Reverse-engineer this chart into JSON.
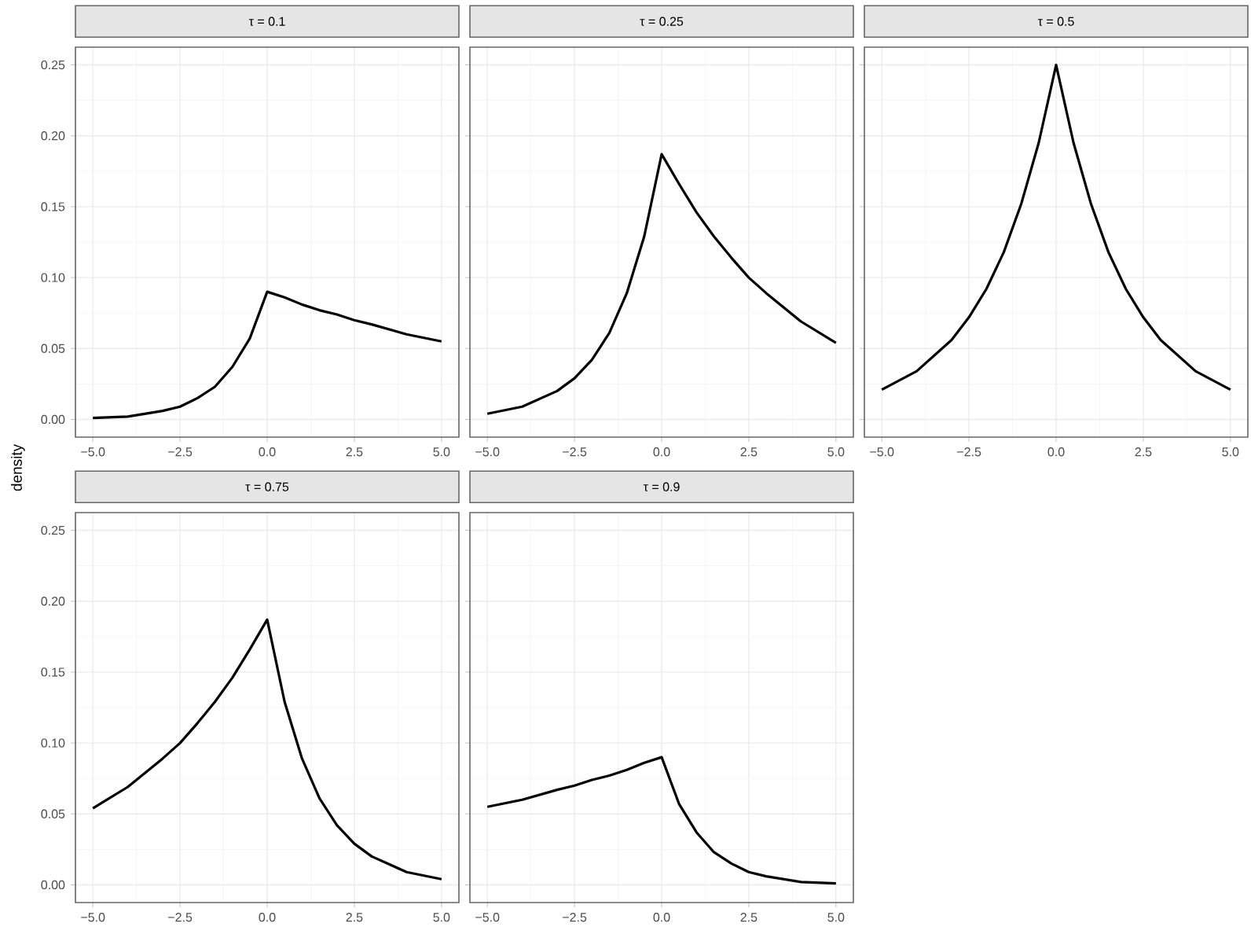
{
  "chart_data": [
    {
      "type": "line",
      "title": "τ = 0.1",
      "x": [
        -5,
        -4,
        -3,
        -2.5,
        -2,
        -1.5,
        -1,
        -0.5,
        0,
        0.5,
        1,
        1.5,
        2,
        2.5,
        3,
        4,
        5
      ],
      "series": [
        {
          "color": "#000000",
          "values": [
            0.001,
            0.002,
            0.006,
            0.009,
            0.015,
            0.023,
            0.037,
            0.057,
            0.09,
            0.086,
            0.081,
            0.077,
            0.074,
            0.07,
            0.067,
            0.06,
            0.055
          ]
        }
      ],
      "xlim": [
        -5.5,
        5.5
      ],
      "ylim": [
        -0.0125,
        0.2625
      ],
      "xticks": [
        {
          "value": -5,
          "label": "−5.0"
        },
        {
          "value": -2.5,
          "label": "−2.5"
        },
        {
          "value": 0,
          "label": "0.0"
        },
        {
          "value": 2.5,
          "label": "2.5"
        },
        {
          "value": 5,
          "label": "5.0"
        }
      ],
      "yticks": [
        {
          "value": 0,
          "label": "0.00"
        },
        {
          "value": 0.05,
          "label": "0.05"
        },
        {
          "value": 0.1,
          "label": "0.10"
        },
        {
          "value": 0.15,
          "label": "0.15"
        },
        {
          "value": 0.2,
          "label": "0.20"
        },
        {
          "value": 0.25,
          "label": "0.25"
        }
      ],
      "grid": true
    },
    {
      "type": "line",
      "title": "τ = 0.25",
      "x": [
        -5,
        -4,
        -3,
        -2.5,
        -2,
        -1.5,
        -1,
        -0.5,
        0,
        0.5,
        1,
        1.5,
        2,
        2.5,
        3,
        4,
        5
      ],
      "series": [
        {
          "color": "#000000",
          "values": [
            0.004,
            0.009,
            0.02,
            0.029,
            0.042,
            0.061,
            0.089,
            0.129,
            0.187,
            0.166,
            0.146,
            0.129,
            0.114,
            0.1,
            0.089,
            0.069,
            0.054
          ]
        }
      ],
      "xlim": [
        -5.5,
        5.5
      ],
      "ylim": [
        -0.0125,
        0.2625
      ],
      "xticks": [
        {
          "value": -5,
          "label": "−5.0"
        },
        {
          "value": -2.5,
          "label": "−2.5"
        },
        {
          "value": 0,
          "label": "0.0"
        },
        {
          "value": 2.5,
          "label": "2.5"
        },
        {
          "value": 5,
          "label": "5.0"
        }
      ],
      "yticks": [
        {
          "value": 0,
          "label": null
        },
        {
          "value": 0.05,
          "label": null
        },
        {
          "value": 0.1,
          "label": null
        },
        {
          "value": 0.15,
          "label": null
        },
        {
          "value": 0.2,
          "label": null
        },
        {
          "value": 0.25,
          "label": null
        }
      ],
      "grid": true,
      "tick_labels": "x"
    },
    {
      "type": "line",
      "title": "τ = 0.5",
      "x": [
        -5,
        -4,
        -3,
        -2.5,
        -2,
        -1.5,
        -1,
        -0.5,
        0,
        0.5,
        1,
        1.5,
        2,
        2.5,
        3,
        4,
        5
      ],
      "series": [
        {
          "color": "#000000",
          "values": [
            0.021,
            0.034,
            0.056,
            0.072,
            0.092,
            0.118,
            0.152,
            0.195,
            0.25,
            0.195,
            0.152,
            0.118,
            0.092,
            0.072,
            0.056,
            0.034,
            0.021
          ]
        }
      ],
      "xlim": [
        -5.5,
        5.5
      ],
      "ylim": [
        -0.0125,
        0.2625
      ],
      "xticks": [
        {
          "value": -5,
          "label": "−5.0"
        },
        {
          "value": -2.5,
          "label": "−2.5"
        },
        {
          "value": 0,
          "label": "0.0"
        },
        {
          "value": 2.5,
          "label": "2.5"
        },
        {
          "value": 5,
          "label": "5.0"
        }
      ],
      "yticks": [
        {
          "value": 0,
          "label": null
        },
        {
          "value": 0.05,
          "label": null
        },
        {
          "value": 0.1,
          "label": null
        },
        {
          "value": 0.15,
          "label": null
        },
        {
          "value": 0.2,
          "label": null
        },
        {
          "value": 0.25,
          "label": null
        }
      ],
      "grid": true,
      "tick_labels": "x"
    },
    {
      "type": "line",
      "title": "τ = 0.75",
      "ylabel": "density",
      "x": [
        -5,
        -4,
        -3,
        -2.5,
        -2,
        -1.5,
        -1,
        -0.5,
        0,
        0.5,
        1,
        1.5,
        2,
        2.5,
        3,
        4,
        5
      ],
      "series": [
        {
          "color": "#000000",
          "values": [
            0.054,
            0.069,
            0.089,
            0.1,
            0.114,
            0.129,
            0.146,
            0.166,
            0.187,
            0.129,
            0.089,
            0.061,
            0.042,
            0.029,
            0.02,
            0.009,
            0.004
          ]
        }
      ],
      "xlim": [
        -5.5,
        5.5
      ],
      "ylim": [
        -0.0125,
        0.2625
      ],
      "xticks": [
        {
          "value": -5,
          "label": "−5.0"
        },
        {
          "value": -2.5,
          "label": "−2.5"
        },
        {
          "value": 0,
          "label": "0.0"
        },
        {
          "value": 2.5,
          "label": "2.5"
        },
        {
          "value": 5,
          "label": "5.0"
        }
      ],
      "yticks": [
        {
          "value": 0,
          "label": "0.00"
        },
        {
          "value": 0.05,
          "label": "0.05"
        },
        {
          "value": 0.1,
          "label": "0.10"
        },
        {
          "value": 0.15,
          "label": "0.15"
        },
        {
          "value": 0.2,
          "label": "0.20"
        },
        {
          "value": 0.25,
          "label": "0.25"
        }
      ],
      "grid": true
    },
    {
      "type": "line",
      "title": "τ = 0.9",
      "x": [
        -5,
        -4,
        -3,
        -2.5,
        -2,
        -1.5,
        -1,
        -0.5,
        0,
        0.5,
        1,
        1.5,
        2,
        2.5,
        3,
        4,
        5
      ],
      "series": [
        {
          "color": "#000000",
          "values": [
            0.055,
            0.06,
            0.067,
            0.07,
            0.074,
            0.077,
            0.081,
            0.086,
            0.09,
            0.057,
            0.037,
            0.023,
            0.015,
            0.009,
            0.006,
            0.002,
            0.001
          ]
        }
      ],
      "xlim": [
        -5.5,
        5.5
      ],
      "ylim": [
        -0.0125,
        0.2625
      ],
      "xticks": [
        {
          "value": -5,
          "label": "−5.0"
        },
        {
          "value": -2.5,
          "label": "−2.5"
        },
        {
          "value": 0,
          "label": "0.0"
        },
        {
          "value": 2.5,
          "label": "2.5"
        },
        {
          "value": 5,
          "label": "5.0"
        }
      ],
      "yticks": [
        {
          "value": 0,
          "label": null
        },
        {
          "value": 0.05,
          "label": null
        },
        {
          "value": 0.1,
          "label": null
        },
        {
          "value": 0.15,
          "label": null
        },
        {
          "value": 0.2,
          "label": null
        },
        {
          "value": 0.25,
          "label": null
        }
      ],
      "grid": true,
      "tick_labels": "x"
    }
  ]
}
